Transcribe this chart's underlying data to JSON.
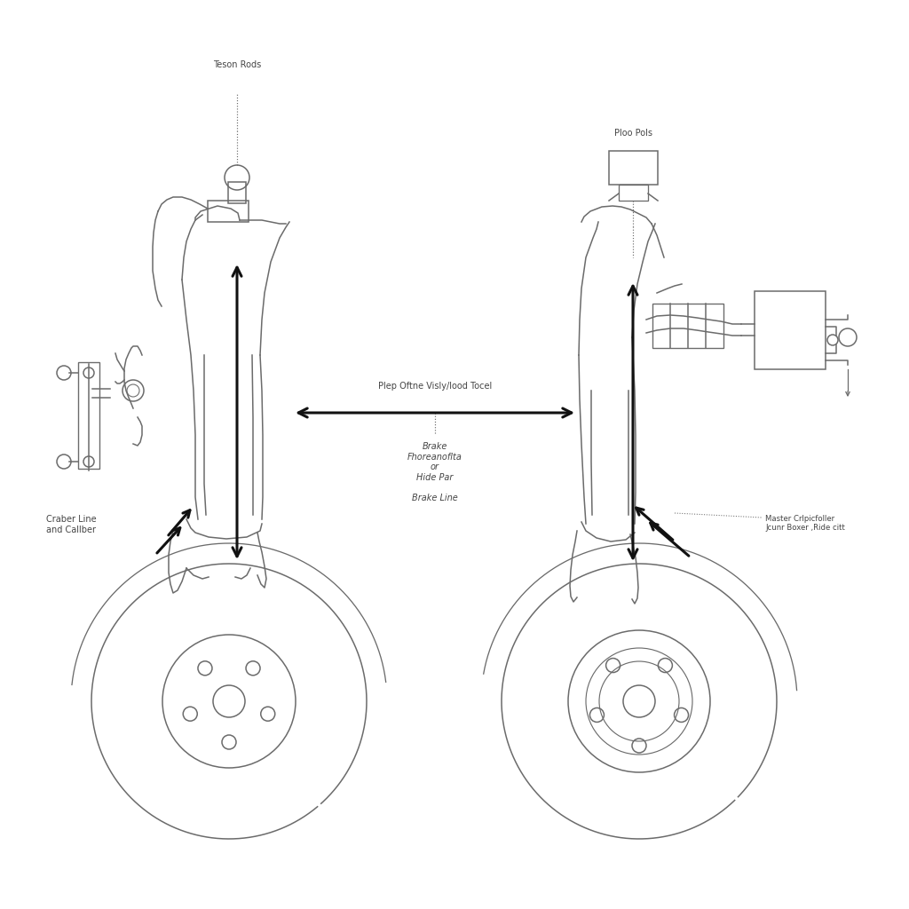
{
  "bg_color": "#ffffff",
  "line_color": "#6b6b6b",
  "arrow_color": "#111111",
  "text_color": "#444444",
  "label_teson_rods": "Teson Rods",
  "label_craber": "Craber Line\nand Callber",
  "label_plep": "Plep Oftne Visly/lood Tocel",
  "label_brake": "Brake\nFhoreanoflta\nor\nHide Par\n\nBrake Line",
  "label_ploo": "Ploo Pols",
  "label_master": "Master Crlpicfoller\nJcunr Boxer ,Ride citt",
  "font_size": 7.0,
  "line_width": 1.1,
  "arrow_lw": 2.2
}
